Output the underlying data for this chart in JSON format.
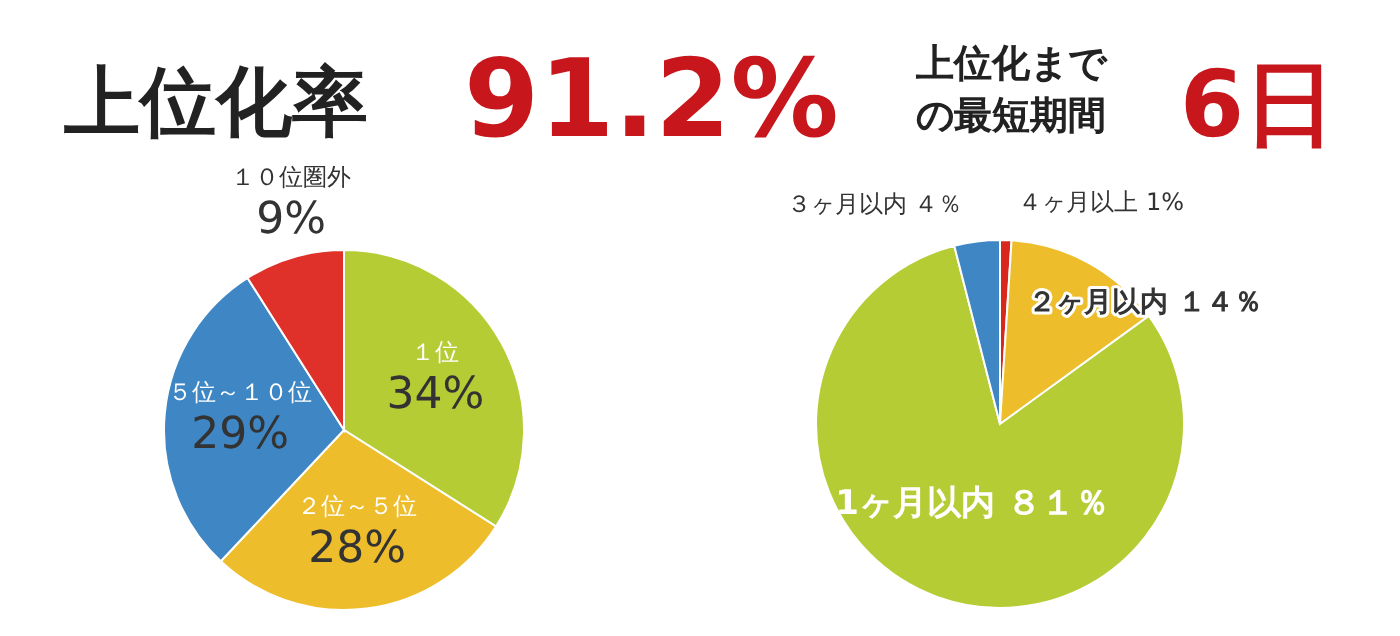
{
  "chart_data": [
    {
      "type": "other",
      "annotations": [
        "上位化率",
        "91.2%",
        "上位化まで",
        "の最短期間",
        "6日"
      ]
    },
    {
      "type": "pie",
      "categories": [
        "１位",
        "２位～５位",
        "５位～１０位",
        "１０位圏外"
      ],
      "values": [
        34,
        28,
        29,
        9
      ],
      "colors": [
        "#b5cc34",
        "#eebd2b",
        "#3e86c4",
        "#e0302a"
      ],
      "value_labels": [
        "34%",
        "28%",
        "29%",
        "9%"
      ]
    },
    {
      "type": "pie",
      "categories": [
        "４ヶ月以上",
        "２ヶ月以内",
        "1ヶ月以内",
        "３ヶ月以内"
      ],
      "values": [
        1,
        14,
        81,
        4
      ],
      "colors": [
        "#d8281e",
        "#eebd2b",
        "#b5cc34",
        "#3e86c4"
      ],
      "value_labels": [
        "1%",
        "１４％",
        "８１％",
        "４％"
      ]
    }
  ]
}
